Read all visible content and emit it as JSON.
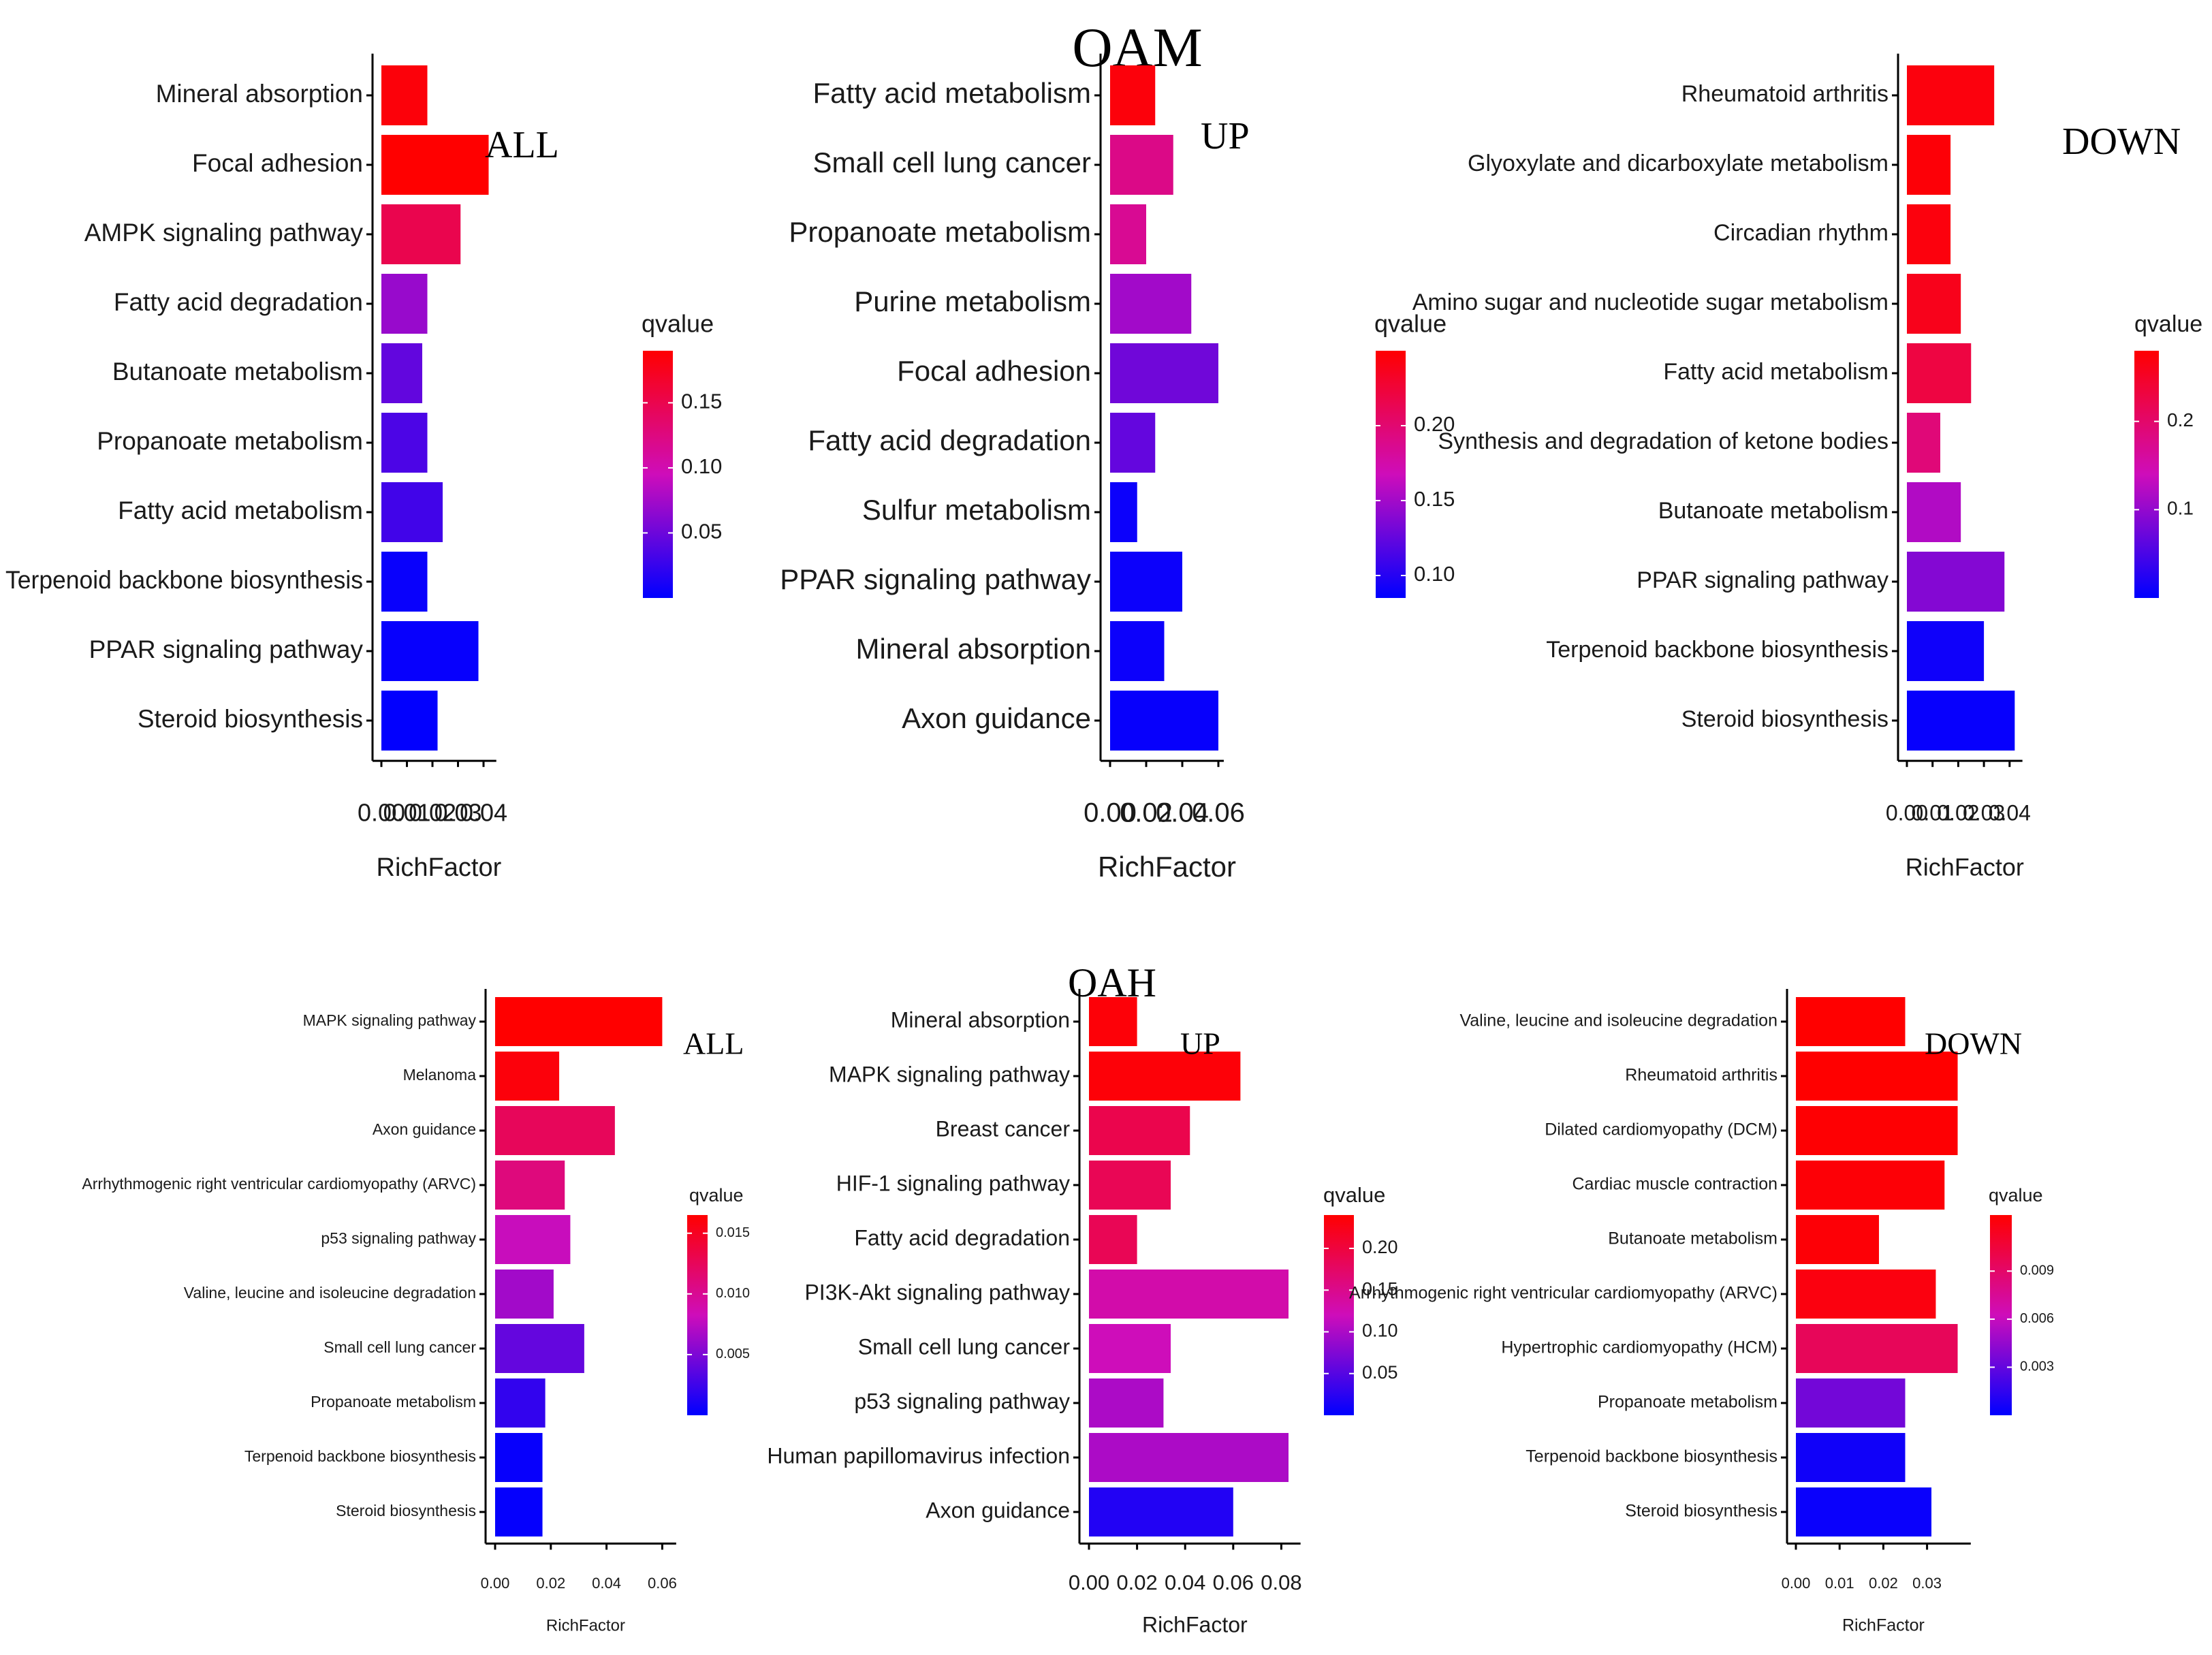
{
  "sections": [
    {
      "title": "OAM"
    },
    {
      "title": "OAH"
    }
  ],
  "legend_title": "qvalue",
  "chart_data": [
    {
      "section": "OAM",
      "type": "bar",
      "orientation": "horizontal",
      "tag": "ALL",
      "xlabel": "RichFactor",
      "xlim": [
        0,
        0.045
      ],
      "xticks": [
        0,
        0.01,
        0.02,
        0.03,
        0.04
      ],
      "xtick_labels": [
        "0.00",
        "0.01",
        "0.02",
        "0.03",
        "0.04"
      ],
      "categories": [
        "Mineral absorption",
        "Focal adhesion",
        "AMPK signaling pathway",
        "Fatty acid degradation",
        "Butanoate metabolism",
        "Propanoate metabolism",
        "Fatty acid metabolism",
        "Terpenoid backbone biosynthesis",
        "PPAR signaling pathway",
        "Steroid biosynthesis"
      ],
      "values": [
        0.018,
        0.042,
        0.031,
        0.018,
        0.016,
        0.018,
        0.024,
        0.018,
        0.038,
        0.022
      ],
      "qvalues": [
        0.185,
        0.19,
        0.15,
        0.07,
        0.045,
        0.035,
        0.03,
        0.004,
        0.003,
        0.001
      ],
      "legend": {
        "title": "qvalue",
        "range": [
          0,
          0.19
        ],
        "ticks": [
          0.05,
          0.1,
          0.15
        ],
        "tick_labels": [
          "0.05",
          "0.10",
          "0.15"
        ]
      }
    },
    {
      "section": "OAM",
      "type": "bar",
      "orientation": "horizontal",
      "tag": "UP",
      "xlabel": "RichFactor",
      "xlim": [
        0,
        0.063
      ],
      "xticks": [
        0,
        0.02,
        0.04,
        0.06
      ],
      "xtick_labels": [
        "0.00",
        "0.02",
        "0.04",
        "0.06"
      ],
      "categories": [
        "Fatty acid metabolism",
        "Small cell lung cancer",
        "Propanoate metabolism",
        "Purine metabolism",
        "Focal adhesion",
        "Fatty acid degradation",
        "Sulfur metabolism",
        "PPAR signaling pathway",
        "Mineral absorption",
        "Axon guidance"
      ],
      "values": [
        0.025,
        0.035,
        0.02,
        0.045,
        0.06,
        0.025,
        0.015,
        0.04,
        0.03,
        0.06
      ],
      "qvalues": [
        0.245,
        0.19,
        0.185,
        0.15,
        0.13,
        0.125,
        0.09,
        0.09,
        0.09,
        0.088
      ],
      "legend": {
        "title": "qvalue",
        "range": [
          0.085,
          0.25
        ],
        "ticks": [
          0.1,
          0.15,
          0.2
        ],
        "tick_labels": [
          "0.10",
          "0.15",
          "0.20"
        ]
      }
    },
    {
      "section": "OAM",
      "type": "bar",
      "orientation": "horizontal",
      "tag": "DOWN",
      "xlabel": "RichFactor",
      "xlim": [
        0,
        0.045
      ],
      "xticks": [
        0,
        0.01,
        0.02,
        0.03,
        0.04
      ],
      "xtick_labels": [
        "0.00",
        "0.01",
        "0.02",
        "0.03",
        "0.04"
      ],
      "categories": [
        "Rheumatoid arthritis",
        "Glyoxylate and dicarboxylate metabolism",
        "Circadian rhythm",
        "Amino sugar and nucleotide sugar metabolism",
        "Fatty acid metabolism",
        "Synthesis and degradation of ketone bodies",
        "Butanoate metabolism",
        "PPAR signaling pathway",
        "Terpenoid backbone biosynthesis",
        "Steroid biosynthesis"
      ],
      "values": [
        0.034,
        0.017,
        0.017,
        0.021,
        0.025,
        0.013,
        0.021,
        0.038,
        0.03,
        0.042
      ],
      "qvalues": [
        0.27,
        0.275,
        0.27,
        0.26,
        0.23,
        0.19,
        0.12,
        0.09,
        0.01,
        0.005
      ],
      "legend": {
        "title": "qvalue",
        "range": [
          0,
          0.28
        ],
        "ticks": [
          0.1,
          0.2
        ],
        "tick_labels": [
          "0.1",
          "0.2"
        ]
      }
    },
    {
      "section": "OAH",
      "type": "bar",
      "orientation": "horizontal",
      "tag": "ALL",
      "xlabel": "RichFactor",
      "xlim": [
        0,
        0.065
      ],
      "xticks": [
        0,
        0.02,
        0.04,
        0.06
      ],
      "xtick_labels": [
        "0.00",
        "0.02",
        "0.04",
        "0.06"
      ],
      "categories": [
        "MAPK signaling pathway",
        "Melanoma",
        "Axon guidance",
        "Arrhythmogenic right ventricular cardiomyopathy (ARVC)",
        "p53 signaling pathway",
        "Valine, leucine and isoleucine degradation",
        "Small cell lung cancer",
        "Propanoate metabolism",
        "Terpenoid backbone biosynthesis",
        "Steroid biosynthesis"
      ],
      "values": [
        0.06,
        0.023,
        0.043,
        0.025,
        0.027,
        0.021,
        0.032,
        0.018,
        0.017,
        0.017
      ],
      "qvalues": [
        0.0165,
        0.016,
        0.0125,
        0.011,
        0.008,
        0.0065,
        0.004,
        0.002,
        0.0003,
        0.0002
      ],
      "legend": {
        "title": "qvalue",
        "range": [
          0,
          0.0165
        ],
        "ticks": [
          0.005,
          0.01,
          0.015
        ],
        "tick_labels": [
          "0.005",
          "0.010",
          "0.015"
        ]
      }
    },
    {
      "section": "OAH",
      "type": "bar",
      "orientation": "horizontal",
      "tag": "UP",
      "xlabel": "RichFactor",
      "xlim": [
        0,
        0.088
      ],
      "xticks": [
        0,
        0.02,
        0.04,
        0.06,
        0.08
      ],
      "xtick_labels": [
        "0.00",
        "0.02",
        "0.04",
        "0.06",
        "0.08"
      ],
      "categories": [
        "Mineral absorption",
        "MAPK signaling pathway",
        "Breast cancer",
        "HIF-1 signaling pathway",
        "Fatty acid degradation",
        "PI3K-Akt signaling pathway",
        "Small cell lung cancer",
        "p53 signaling pathway",
        "Human papillomavirus infection",
        "Axon guidance"
      ],
      "values": [
        0.02,
        0.063,
        0.042,
        0.034,
        0.02,
        0.083,
        0.034,
        0.031,
        0.083,
        0.06
      ],
      "qvalues": [
        0.235,
        0.235,
        0.19,
        0.185,
        0.185,
        0.13,
        0.12,
        0.1,
        0.1,
        0.02
      ],
      "legend": {
        "title": "qvalue",
        "range": [
          0,
          0.24
        ],
        "ticks": [
          0.05,
          0.1,
          0.15,
          0.2
        ],
        "tick_labels": [
          "0.05",
          "0.10",
          "0.15",
          "0.20"
        ]
      }
    },
    {
      "section": "OAH",
      "type": "bar",
      "orientation": "horizontal",
      "tag": "DOWN",
      "xlabel": "RichFactor",
      "xlim": [
        0,
        0.04
      ],
      "xticks": [
        0,
        0.01,
        0.02,
        0.03
      ],
      "xtick_labels": [
        "0.00",
        "0.01",
        "0.02",
        "0.03"
      ],
      "categories": [
        "Valine, leucine and isoleucine degradation",
        "Rheumatoid arthritis",
        "Dilated cardiomyopathy (DCM)",
        "Cardiac muscle contraction",
        "Butanoate metabolism",
        "Arrhythmogenic right ventricular cardiomyopathy (ARVC)",
        "Hypertrophic cardiomyopathy (HCM)",
        "Propanoate metabolism",
        "Terpenoid backbone biosynthesis",
        "Steroid biosynthesis"
      ],
      "values": [
        0.025,
        0.037,
        0.037,
        0.034,
        0.019,
        0.032,
        0.037,
        0.025,
        0.025,
        0.031
      ],
      "qvalues": [
        0.0125,
        0.0125,
        0.0124,
        0.0123,
        0.0123,
        0.012,
        0.0095,
        0.0035,
        0.0005,
        0.0003
      ],
      "legend": {
        "title": "qvalue",
        "range": [
          0,
          0.0125
        ],
        "ticks": [
          0.003,
          0.006,
          0.009
        ],
        "tick_labels": [
          "0.003",
          "0.006",
          "0.009"
        ]
      }
    }
  ]
}
